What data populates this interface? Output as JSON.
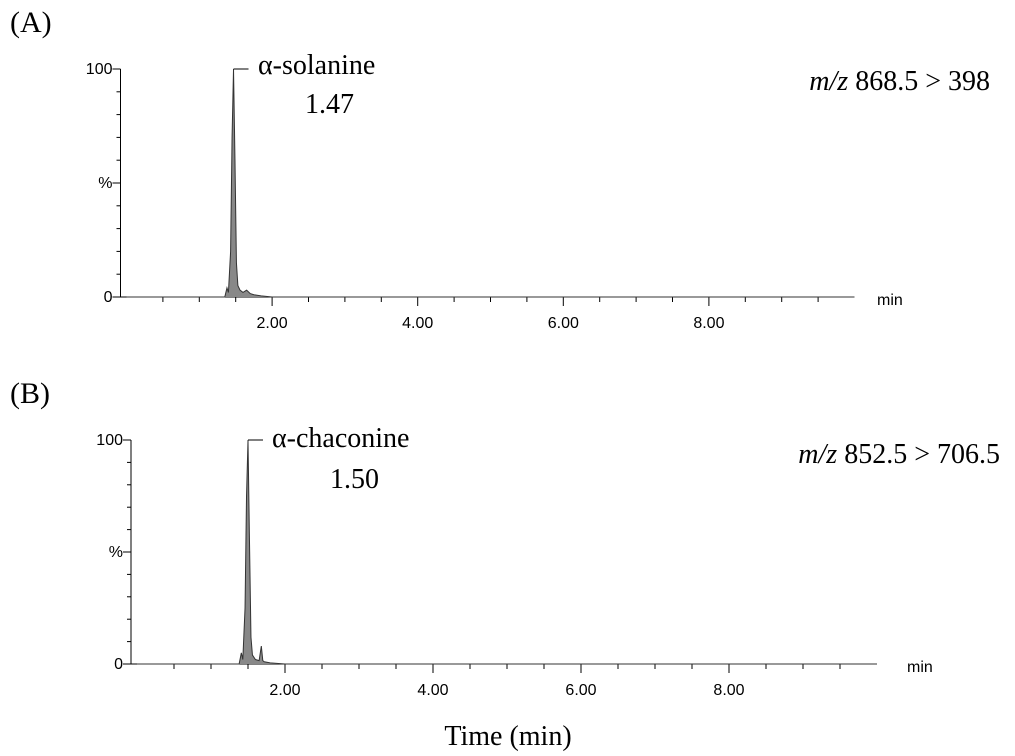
{
  "chart_data": [
    {
      "type": "line",
      "panel_label": "(A)",
      "peak_name": "α-solanine",
      "peak_time": {
        "value": 1.47,
        "label": "1.47"
      },
      "mz_prefix": "m/z",
      "transition": "868.5 > 398",
      "x_unit": "min",
      "color": "#888888",
      "x": [
        0,
        1.2,
        1.35,
        1.38,
        1.4,
        1.43,
        1.45,
        1.47,
        1.49,
        1.51,
        1.53,
        1.56,
        1.6,
        1.65,
        1.7,
        1.75,
        1.85,
        2.0,
        10
      ],
      "values": [
        0,
        0,
        0,
        4,
        2,
        20,
        70,
        100,
        60,
        15,
        5,
        3,
        2,
        3,
        1.5,
        1,
        0.5,
        0,
        0
      ],
      "xlim": [
        0,
        10
      ],
      "ylim": [
        0,
        100
      ],
      "xticks": [
        {
          "value": 2,
          "label": "2.00"
        },
        {
          "value": 4,
          "label": "4.00"
        },
        {
          "value": 6,
          "label": "6.00"
        },
        {
          "value": 8,
          "label": "8.00"
        }
      ],
      "xminorticks": [
        0.5,
        1,
        1.5,
        2.5,
        3,
        3.5,
        4.5,
        5,
        5.5,
        6.5,
        7,
        7.5,
        8.5,
        9,
        9.5
      ],
      "yticks": [
        0,
        {
          "value": 50,
          "label": "%"
        },
        100
      ],
      "yminorticks": [
        10,
        20,
        30,
        40,
        60,
        70,
        80,
        90
      ]
    },
    {
      "type": "line",
      "panel_label": "(B)",
      "peak_name": "α-chaconine",
      "peak_time": {
        "value": 1.5,
        "label": "1.50"
      },
      "mz_prefix": "m/z",
      "transition": "852.5 > 706.5",
      "x_unit": "min",
      "color": "#888888",
      "x_label": "Time (min)",
      "x": [
        0,
        1.25,
        1.38,
        1.41,
        1.43,
        1.46,
        1.48,
        1.5,
        1.52,
        1.54,
        1.56,
        1.6,
        1.65,
        1.68,
        1.7,
        1.72,
        1.8,
        2.0,
        10
      ],
      "values": [
        0,
        0,
        0,
        5,
        2,
        25,
        75,
        100,
        55,
        12,
        4,
        2,
        1.5,
        8,
        1.5,
        1,
        0.5,
        0,
        0
      ],
      "xlim": [
        0,
        10
      ],
      "ylim": [
        0,
        100
      ],
      "xticks": [
        {
          "value": 2,
          "label": "2.00"
        },
        {
          "value": 4,
          "label": "4.00"
        },
        {
          "value": 6,
          "label": "6.00"
        },
        {
          "value": 8,
          "label": "8.00"
        }
      ],
      "xminorticks": [
        0.5,
        1,
        1.5,
        2.5,
        3,
        3.5,
        4.5,
        5,
        5.5,
        6.5,
        7,
        7.5,
        8.5,
        9,
        9.5
      ],
      "yticks": [
        0,
        {
          "value": 50,
          "label": "%"
        },
        100
      ],
      "yminorticks": [
        10,
        20,
        30,
        40,
        60,
        70,
        80,
        90
      ]
    }
  ]
}
